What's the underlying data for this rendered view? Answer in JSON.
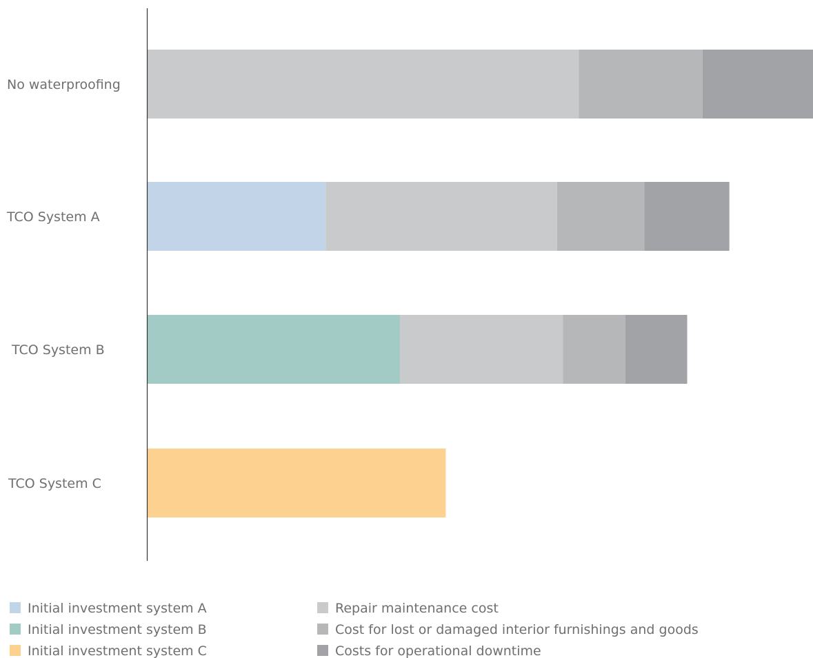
{
  "chart_data": {
    "type": "bar",
    "orientation": "horizontal",
    "stacked": true,
    "title": "",
    "xlabel": "",
    "ylabel": "",
    "categories": [
      "No waterproofing",
      "TCO System A",
      "TCO System B",
      "TCO System C"
    ],
    "series": [
      {
        "name": "Initial investment system A",
        "color": "#c2d4e8",
        "values": [
          0,
          24.5,
          0,
          0
        ]
      },
      {
        "name": "Initial investment system B",
        "color": "#a3cbc6",
        "values": [
          0,
          0,
          34.7,
          0
        ]
      },
      {
        "name": "Initial investment system C",
        "color": "#fdd291",
        "values": [
          0,
          0,
          0,
          41.0
        ]
      },
      {
        "name": "Repair maintenance cost",
        "color": "#c9cacc",
        "values": [
          59.3,
          31.8,
          22.4,
          0
        ]
      },
      {
        "name": "Cost for lost or damaged interior furnishings and goods",
        "color": "#b6b7b9",
        "values": [
          17.0,
          12.0,
          8.6,
          0
        ]
      },
      {
        "name": "Costs for operational downtime",
        "color": "#a2a3a6",
        "values": [
          15.2,
          11.7,
          8.5,
          0
        ]
      }
    ],
    "xlim": [
      0,
      91.5
    ],
    "grid": false,
    "axis_tick_labels": false,
    "legend_position": "bottom"
  }
}
